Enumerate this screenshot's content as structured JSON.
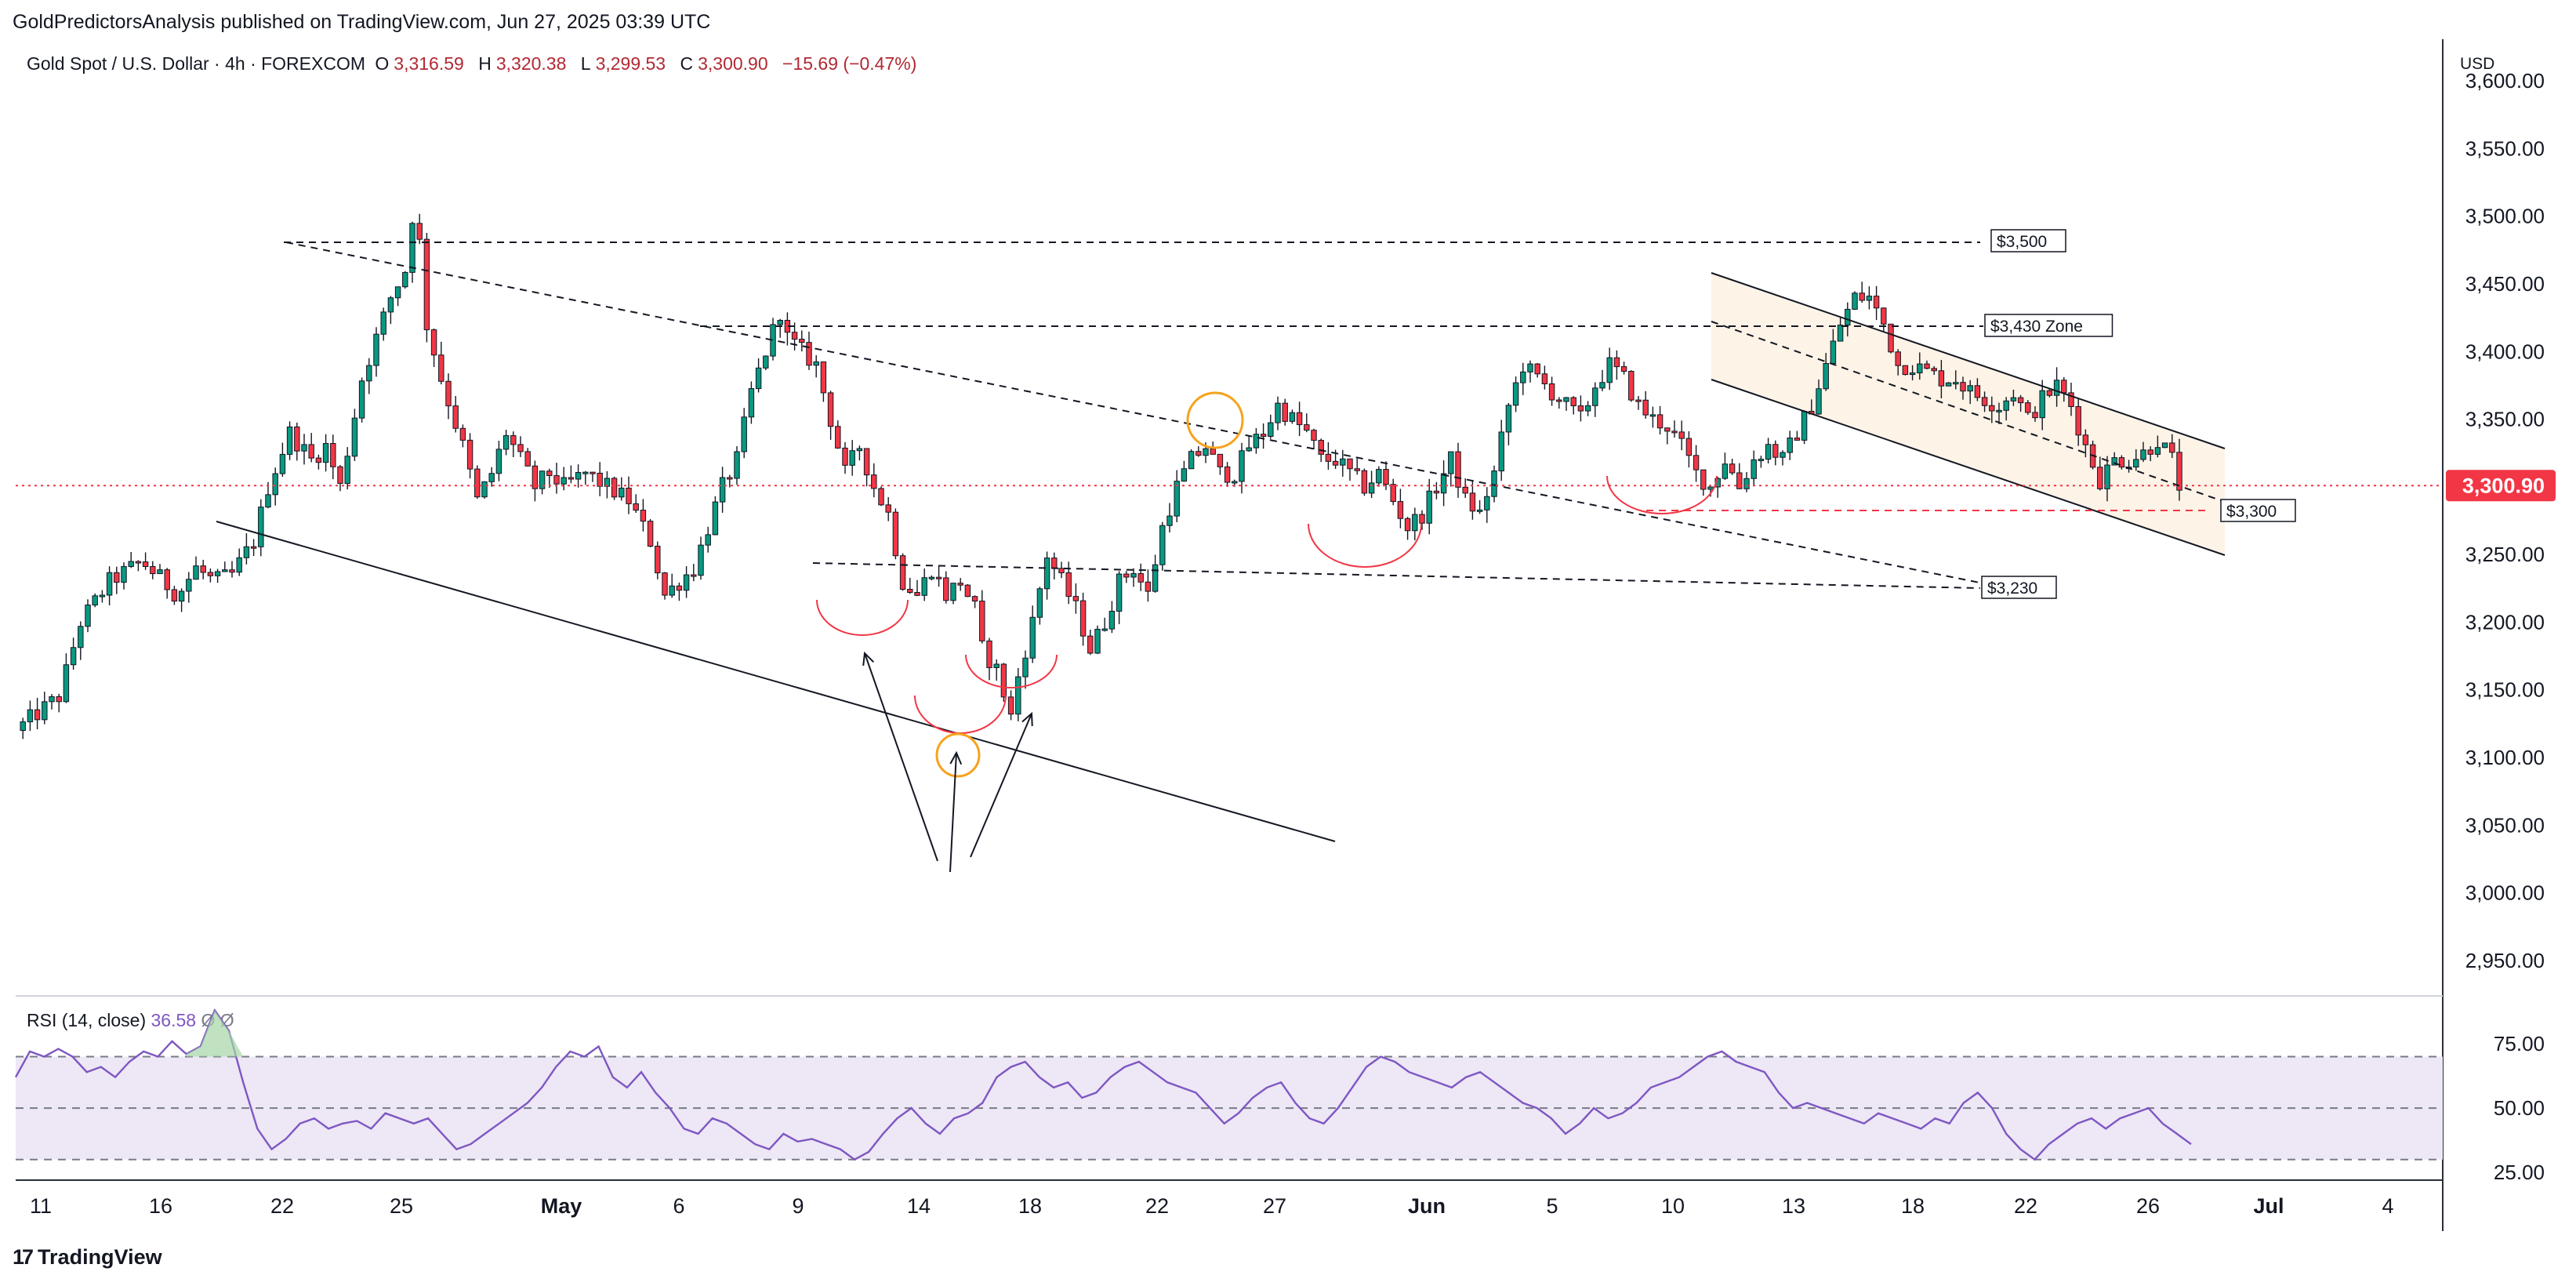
{
  "header": {
    "publisher": "GoldPredictorsAnalysis published on TradingView.com, Jun 27, 2025 03:39 UTC",
    "symbol": "Gold Spot / U.S. Dollar · 4h · FOREXCOM",
    "open_label": "O",
    "open": "3,316.59",
    "high_label": "H",
    "high": "3,320.38",
    "low_label": "L",
    "low": "3,299.53",
    "close_label": "C",
    "close": "3,300.90",
    "change": "−15.69 (−0.47%)",
    "currency": "USD"
  },
  "footer": {
    "brand": "TradingView"
  },
  "colors": {
    "up": "#089981",
    "down": "#f23645",
    "rsi": "#7e57c2",
    "rsi_band": "#ede7f6",
    "last_price": "#f23645",
    "circle": "#f7a21b",
    "channel_fill": "#fdf3e7"
  },
  "chart_data": [
    {
      "type": "candlestick",
      "title": "Gold Spot / U.S. Dollar · 4h · FOREXCOM",
      "ylim": [
        2925,
        3625
      ],
      "y_ticks": [
        "3,600.00",
        "3,550.00",
        "3,500.00",
        "3,450.00",
        "3,400.00",
        "3,350.00",
        "3,300.00",
        "3,250.00",
        "3,200.00",
        "3,150.00",
        "3,100.00",
        "3,050.00",
        "3,000.00",
        "2,950.00"
      ],
      "x_ticks": [
        "11",
        "16",
        "22",
        "25",
        "May",
        "6",
        "9",
        "14",
        "18",
        "22",
        "27",
        "Jun",
        "5",
        "10",
        "13",
        "18",
        "22",
        "26",
        "Jul",
        "4"
      ],
      "last_price": "3,300.90",
      "price_path": [
        [
          0,
          3120
        ],
        [
          12,
          3145
        ],
        [
          18,
          3200
        ],
        [
          26,
          3230
        ],
        [
          35,
          3245
        ],
        [
          45,
          3220
        ],
        [
          50,
          3240
        ],
        [
          55,
          3230
        ],
        [
          60,
          3235
        ],
        [
          66,
          3260
        ],
        [
          70,
          3300
        ],
        [
          76,
          3340
        ],
        [
          82,
          3320
        ],
        [
          86,
          3330
        ],
        [
          90,
          3300
        ],
        [
          96,
          3380
        ],
        [
          100,
          3410
        ],
        [
          104,
          3440
        ],
        [
          108,
          3460
        ],
        [
          110,
          3500
        ],
        [
          112,
          3480
        ],
        [
          114,
          3420
        ],
        [
          118,
          3380
        ],
        [
          124,
          3330
        ],
        [
          128,
          3290
        ],
        [
          132,
          3310
        ],
        [
          136,
          3340
        ],
        [
          140,
          3320
        ],
        [
          144,
          3300
        ],
        [
          148,
          3310
        ],
        [
          152,
          3300
        ],
        [
          158,
          3310
        ],
        [
          164,
          3300
        ],
        [
          170,
          3290
        ],
        [
          176,
          3260
        ],
        [
          180,
          3220
        ],
        [
          184,
          3230
        ],
        [
          188,
          3240
        ],
        [
          192,
          3270
        ],
        [
          196,
          3300
        ],
        [
          200,
          3320
        ],
        [
          204,
          3370
        ],
        [
          208,
          3400
        ],
        [
          212,
          3430
        ],
        [
          214,
          3410
        ],
        [
          218,
          3400
        ],
        [
          222,
          3390
        ],
        [
          226,
          3350
        ],
        [
          230,
          3310
        ],
        [
          234,
          3330
        ],
        [
          238,
          3300
        ],
        [
          242,
          3280
        ],
        [
          246,
          3230
        ],
        [
          250,
          3220
        ],
        [
          254,
          3240
        ],
        [
          258,
          3220
        ],
        [
          262,
          3230
        ],
        [
          266,
          3210
        ],
        [
          268,
          3180
        ],
        [
          272,
          3165
        ],
        [
          276,
          3130
        ],
        [
          278,
          3160
        ],
        [
          282,
          3200
        ],
        [
          286,
          3250
        ],
        [
          290,
          3230
        ],
        [
          294,
          3210
        ],
        [
          298,
          3180
        ],
        [
          302,
          3200
        ],
        [
          306,
          3230
        ],
        [
          310,
          3240
        ],
        [
          314,
          3220
        ],
        [
          318,
          3270
        ],
        [
          322,
          3300
        ],
        [
          326,
          3320
        ],
        [
          330,
          3330
        ],
        [
          334,
          3310
        ],
        [
          338,
          3310
        ],
        [
          342,
          3330
        ],
        [
          346,
          3340
        ],
        [
          350,
          3360
        ],
        [
          354,
          3350
        ],
        [
          358,
          3340
        ],
        [
          362,
          3320
        ],
        [
          366,
          3320
        ],
        [
          370,
          3310
        ],
        [
          374,
          3300
        ],
        [
          378,
          3310
        ],
        [
          382,
          3290
        ],
        [
          386,
          3270
        ],
        [
          390,
          3280
        ],
        [
          394,
          3300
        ],
        [
          398,
          3320
        ],
        [
          402,
          3290
        ],
        [
          406,
          3280
        ],
        [
          410,
          3310
        ],
        [
          414,
          3360
        ],
        [
          418,
          3390
        ],
        [
          422,
          3380
        ],
        [
          426,
          3370
        ],
        [
          430,
          3360
        ],
        [
          434,
          3350
        ],
        [
          438,
          3375
        ],
        [
          442,
          3390
        ],
        [
          446,
          3380
        ],
        [
          450,
          3360
        ],
        [
          454,
          3350
        ],
        [
          458,
          3345
        ],
        [
          462,
          3330
        ],
        [
          466,
          3310
        ],
        [
          470,
          3300
        ],
        [
          474,
          3320
        ],
        [
          478,
          3300
        ],
        [
          482,
          3320
        ],
        [
          486,
          3330
        ],
        [
          490,
          3320
        ],
        [
          494,
          3340
        ],
        [
          498,
          3360
        ],
        [
          502,
          3390
        ],
        [
          506,
          3420
        ],
        [
          510,
          3440
        ],
        [
          514,
          3440
        ],
        [
          518,
          3420
        ],
        [
          522,
          3390
        ],
        [
          526,
          3390
        ],
        [
          530,
          3385
        ],
        [
          534,
          3380
        ],
        [
          538,
          3380
        ],
        [
          542,
          3370
        ],
        [
          546,
          3365
        ],
        [
          550,
          3360
        ],
        [
          554,
          3370
        ],
        [
          558,
          3350
        ],
        [
          562,
          3365
        ],
        [
          566,
          3375
        ],
        [
          570,
          3360
        ],
        [
          574,
          3330
        ],
        [
          578,
          3305
        ],
        [
          582,
          3320
        ],
        [
          586,
          3320
        ],
        [
          590,
          3325
        ],
        [
          594,
          3335
        ],
        [
          598,
          3320
        ],
        [
          600,
          3301
        ]
      ],
      "annotations": {
        "labels": [
          "$3,500",
          "$3,430 Zone",
          "$3,300",
          "$3,230"
        ]
      }
    },
    {
      "type": "line",
      "title": "RSI (14, close)",
      "values_text": {
        "rsi": "36.58",
        "a": "Ø",
        "b": "Ø"
      },
      "ylim": [
        22,
        93
      ],
      "y_ticks": [
        "75.00",
        "50.00",
        "25.00"
      ],
      "band": [
        30,
        70
      ],
      "series": [
        {
          "name": "RSI",
          "values": [
            62,
            72,
            70,
            73,
            70,
            64,
            66,
            62,
            68,
            72,
            70,
            76,
            71,
            74,
            88,
            80,
            60,
            42,
            34,
            38,
            44,
            46,
            42,
            44,
            45,
            42,
            48,
            46,
            44,
            46,
            40,
            34,
            36,
            40,
            44,
            48,
            52,
            58,
            66,
            72,
            70,
            74,
            62,
            58,
            64,
            56,
            50,
            42,
            40,
            46,
            44,
            40,
            36,
            34,
            40,
            37,
            38,
            36,
            34,
            30,
            33,
            40,
            46,
            50,
            44,
            40,
            46,
            48,
            52,
            62,
            66,
            68,
            62,
            58,
            60,
            54,
            56,
            62,
            66,
            68,
            64,
            60,
            58,
            56,
            50,
            44,
            48,
            54,
            58,
            60,
            52,
            46,
            44,
            50,
            58,
            66,
            70,
            68,
            64,
            62,
            60,
            58,
            62,
            64,
            60,
            56,
            52,
            50,
            46,
            40,
            44,
            50,
            46,
            48,
            52,
            58,
            60,
            62,
            66,
            70,
            72,
            68,
            66,
            64,
            56,
            50,
            52,
            50,
            48,
            46,
            44,
            48,
            46,
            44,
            42,
            46,
            44,
            52,
            56,
            50,
            40,
            34,
            30,
            36,
            40,
            44,
            46,
            42,
            46,
            48,
            50,
            44,
            40,
            36
          ]
        }
      ]
    }
  ]
}
